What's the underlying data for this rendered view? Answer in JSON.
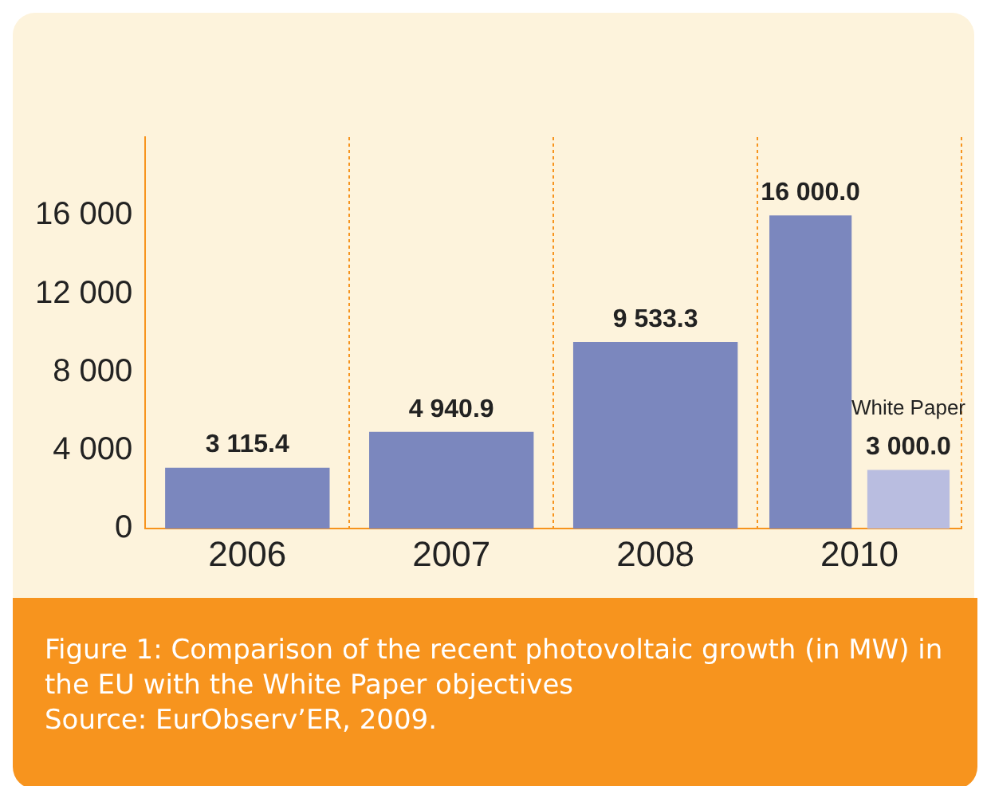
{
  "chart_data": {
    "type": "bar",
    "categories": [
      "2006",
      "2007",
      "2008",
      "2010"
    ],
    "series": [
      {
        "color": "#7b87be",
        "values": [
          3115.4,
          4940.9,
          9533.3,
          16000
        ],
        "value_labels": [
          "3 115.4",
          "4 940.9",
          "9 533.3",
          "16 000.0"
        ]
      },
      {
        "name": "White Paper",
        "color": "#b9bde0",
        "values": [
          null,
          null,
          null,
          3000
        ],
        "value_labels": [
          null,
          null,
          null,
          "3 000.0"
        ]
      }
    ],
    "ylim": [
      0,
      20000
    ],
    "yticks": [
      0,
      {
        "value": 4000,
        "label": "4 000"
      },
      {
        "value": 8000,
        "label": "8 000"
      },
      {
        "value": 12000,
        "label": "12 000"
      },
      {
        "value": 16000,
        "label": "16 000"
      }
    ],
    "grid": "x",
    "legend": false,
    "annotations": [
      "Figure 1: Comparison of the recent photovoltaic growth (in MW) in the EU with the White Paper objectives",
      "Source: EurObserv’ER, 2009."
    ]
  }
}
